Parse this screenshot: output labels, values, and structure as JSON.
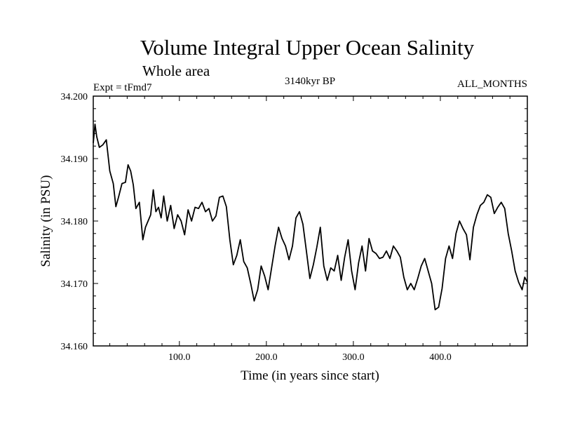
{
  "chart_data": {
    "type": "line",
    "title": "Volume Integral Upper Ocean Salinity",
    "subtitle": "Whole area",
    "expt_label": "Expt = tFmd7",
    "period_label": "3140kyr BP",
    "months_label": "ALL_MONTHS",
    "xlabel": "Time (in years since start)",
    "ylabel": "Salinity (in PSU)",
    "xlim": [
      1,
      500
    ],
    "ylim": [
      34.16,
      34.2
    ],
    "x_ticks": [
      100,
      200,
      300,
      400
    ],
    "x_tick_labels": [
      "100.0",
      "200.0",
      "300.0",
      "400.0"
    ],
    "y_ticks": [
      34.16,
      34.17,
      34.18,
      34.19,
      34.2
    ],
    "y_tick_labels": [
      "34.160",
      "34.170",
      "34.180",
      "34.190",
      "34.200"
    ],
    "grid": false,
    "line_color": "#000000",
    "series": [
      {
        "name": "salinity",
        "x": [
          1,
          3,
          5,
          8,
          12,
          16,
          20,
          24,
          27,
          30,
          34,
          38,
          41,
          44,
          47,
          50,
          54,
          58,
          61,
          64,
          67,
          70,
          73,
          76,
          79,
          82,
          86,
          90,
          94,
          98,
          102,
          106,
          110,
          114,
          118,
          122,
          126,
          130,
          134,
          138,
          142,
          146,
          150,
          154,
          158,
          162,
          166,
          170,
          174,
          178,
          182,
          186,
          190,
          194,
          198,
          202,
          206,
          210,
          214,
          218,
          222,
          226,
          230,
          234,
          238,
          242,
          246,
          250,
          254,
          258,
          262,
          266,
          270,
          274,
          278,
          282,
          286,
          290,
          294,
          298,
          302,
          306,
          310,
          314,
          318,
          322,
          326,
          330,
          334,
          338,
          342,
          346,
          350,
          354,
          358,
          362,
          366,
          370,
          374,
          378,
          382,
          386,
          390,
          394,
          398,
          402,
          406,
          410,
          414,
          418,
          422,
          426,
          430,
          434,
          438,
          442,
          446,
          450,
          454,
          458,
          462,
          466,
          470,
          474,
          478,
          482,
          486,
          490,
          494,
          497,
          500
        ],
        "values": [
          34.1925,
          34.1955,
          34.1935,
          34.1918,
          34.1922,
          34.193,
          34.188,
          34.186,
          34.1823,
          34.1838,
          34.186,
          34.1862,
          34.189,
          34.188,
          34.1858,
          34.182,
          34.183,
          34.177,
          34.179,
          34.18,
          34.181,
          34.185,
          34.1815,
          34.1822,
          34.1805,
          34.184,
          34.18,
          34.1825,
          34.1788,
          34.181,
          34.18,
          34.1778,
          34.1818,
          34.18,
          34.1822,
          34.182,
          34.183,
          34.1815,
          34.182,
          34.18,
          34.1808,
          34.1838,
          34.184,
          34.1823,
          34.177,
          34.173,
          34.1745,
          34.177,
          34.1735,
          34.1725,
          34.17,
          34.1672,
          34.169,
          34.1728,
          34.1712,
          34.169,
          34.1725,
          34.176,
          34.179,
          34.1772,
          34.176,
          34.1738,
          34.176,
          34.1805,
          34.1815,
          34.1795,
          34.1752,
          34.1708,
          34.173,
          34.1758,
          34.179,
          34.1728,
          34.1705,
          34.1725,
          34.172,
          34.1745,
          34.1705,
          34.1742,
          34.177,
          34.172,
          34.169,
          34.1733,
          34.176,
          34.172,
          34.1772,
          34.1752,
          34.1748,
          34.174,
          34.1742,
          34.1752,
          34.174,
          34.176,
          34.1752,
          34.1742,
          34.171,
          34.169,
          34.17,
          34.169,
          34.1708,
          34.1728,
          34.174,
          34.172,
          34.17,
          34.1658,
          34.1662,
          34.1692,
          34.174,
          34.176,
          34.174,
          34.178,
          34.18,
          34.1788,
          34.1778,
          34.1738,
          34.179,
          34.181,
          34.1825,
          34.183,
          34.1842,
          34.1838,
          34.1812,
          34.1822,
          34.183,
          34.182,
          34.178,
          34.1752,
          34.172,
          34.1702,
          34.169,
          34.171,
          34.1702
        ]
      }
    ]
  }
}
